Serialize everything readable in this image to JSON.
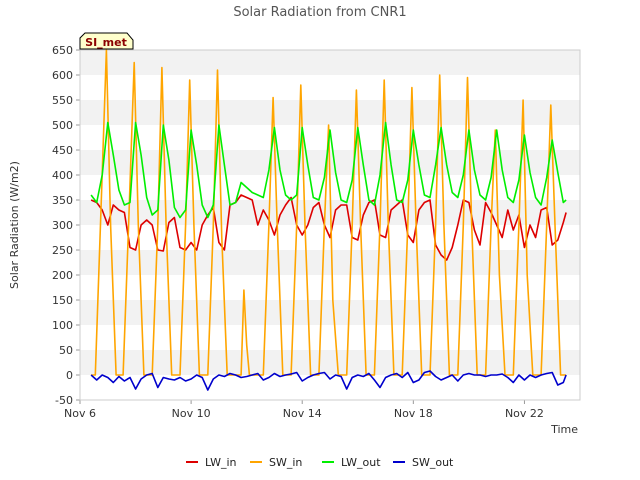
{
  "chart_data": {
    "type": "line",
    "title": "Solar Radiation from CNR1",
    "xlabel": "Time",
    "ylabel": "Solar Radiation (W/m2)",
    "station_badge": "SI_met",
    "ylim": [
      -50,
      650
    ],
    "y_ticks": [
      -50,
      0,
      50,
      100,
      150,
      200,
      250,
      300,
      350,
      400,
      450,
      500,
      550,
      600,
      650
    ],
    "xlim": [
      6.0,
      24.0
    ],
    "x_ticks": [
      {
        "value": 6,
        "label": "Nov 6"
      },
      {
        "value": 10,
        "label": "Nov 10"
      },
      {
        "value": 14,
        "label": "Nov 14"
      },
      {
        "value": 18,
        "label": "Nov 18"
      },
      {
        "value": 22,
        "label": "Nov 22"
      }
    ],
    "grid": "horizontal bands",
    "legend_position": "bottom",
    "series": [
      {
        "name": "LW_in",
        "color": "#dd0000",
        "x": [
          6.4,
          6.6,
          6.8,
          7.0,
          7.2,
          7.4,
          7.6,
          7.8,
          8.0,
          8.2,
          8.4,
          8.6,
          8.8,
          9.0,
          9.2,
          9.4,
          9.6,
          9.8,
          10.0,
          10.2,
          10.4,
          10.6,
          10.8,
          11.0,
          11.2,
          11.4,
          11.6,
          11.8,
          12.0,
          12.2,
          12.4,
          12.6,
          12.8,
          13.0,
          13.2,
          13.4,
          13.6,
          13.8,
          14.0,
          14.2,
          14.4,
          14.6,
          14.8,
          15.0,
          15.2,
          15.4,
          15.6,
          15.8,
          16.0,
          16.2,
          16.4,
          16.6,
          16.8,
          17.0,
          17.2,
          17.4,
          17.6,
          17.8,
          18.0,
          18.2,
          18.4,
          18.6,
          18.8,
          19.0,
          19.2,
          19.4,
          19.6,
          19.8,
          20.0,
          20.2,
          20.4,
          20.6,
          20.8,
          21.0,
          21.2,
          21.4,
          21.6,
          21.8,
          22.0,
          22.2,
          22.4,
          22.6,
          22.8,
          23.0,
          23.2,
          23.4,
          23.5
        ],
        "values": [
          350,
          345,
          330,
          300,
          340,
          330,
          325,
          255,
          250,
          300,
          310,
          300,
          250,
          248,
          305,
          315,
          255,
          250,
          265,
          250,
          300,
          320,
          335,
          265,
          250,
          340,
          345,
          360,
          355,
          350,
          300,
          330,
          310,
          280,
          320,
          340,
          355,
          300,
          280,
          300,
          335,
          345,
          300,
          275,
          330,
          340,
          340,
          275,
          270,
          320,
          345,
          350,
          280,
          275,
          330,
          340,
          350,
          280,
          265,
          330,
          345,
          350,
          260,
          240,
          230,
          255,
          300,
          350,
          345,
          290,
          260,
          345,
          325,
          300,
          275,
          330,
          290,
          320,
          255,
          300,
          275,
          330,
          335,
          260,
          270,
          305,
          325
        ]
      },
      {
        "name": "SW_in",
        "color": "#ffa500",
        "x": [
          6.4,
          6.55,
          6.75,
          6.95,
          7.1,
          7.3,
          7.55,
          7.75,
          7.95,
          8.1,
          8.3,
          8.6,
          8.8,
          8.95,
          9.1,
          9.3,
          9.6,
          9.8,
          9.95,
          10.1,
          10.3,
          10.6,
          10.8,
          10.95,
          11.1,
          11.3,
          11.6,
          11.8,
          11.9,
          12.0,
          12.1,
          12.3,
          12.6,
          12.8,
          12.95,
          13.1,
          13.3,
          13.6,
          13.8,
          13.95,
          14.1,
          14.3,
          14.6,
          14.8,
          14.95,
          15.1,
          15.3,
          15.6,
          15.8,
          15.95,
          16.1,
          16.3,
          16.6,
          16.8,
          16.95,
          17.1,
          17.3,
          17.6,
          17.8,
          17.95,
          18.1,
          18.3,
          18.6,
          18.8,
          18.95,
          19.1,
          19.3,
          19.6,
          19.8,
          19.95,
          20.1,
          20.3,
          20.6,
          20.8,
          20.95,
          21.1,
          21.3,
          21.6,
          21.8,
          21.95,
          22.1,
          22.3,
          22.6,
          22.8,
          22.95,
          23.1,
          23.3,
          23.5
        ],
        "values": [
          0,
          0,
          320,
          650,
          300,
          0,
          0,
          300,
          625,
          300,
          0,
          0,
          300,
          615,
          300,
          0,
          0,
          300,
          590,
          300,
          0,
          0,
          300,
          610,
          280,
          0,
          0,
          0,
          170,
          60,
          0,
          0,
          0,
          300,
          555,
          300,
          0,
          0,
          300,
          580,
          300,
          0,
          0,
          300,
          500,
          150,
          0,
          0,
          300,
          570,
          300,
          0,
          0,
          300,
          590,
          300,
          0,
          0,
          300,
          575,
          300,
          0,
          0,
          300,
          600,
          300,
          0,
          0,
          300,
          595,
          300,
          0,
          0,
          300,
          490,
          200,
          0,
          0,
          300,
          550,
          200,
          0,
          0,
          300,
          540,
          300,
          0,
          0
        ]
      },
      {
        "name": "LW_out",
        "color": "#00ee00",
        "x": [
          6.4,
          6.6,
          6.8,
          7.0,
          7.2,
          7.4,
          7.6,
          7.8,
          8.0,
          8.2,
          8.4,
          8.6,
          8.8,
          9.0,
          9.2,
          9.4,
          9.6,
          9.8,
          10.0,
          10.2,
          10.4,
          10.6,
          10.8,
          11.0,
          11.2,
          11.4,
          11.6,
          11.8,
          12.0,
          12.2,
          12.4,
          12.6,
          12.8,
          13.0,
          13.2,
          13.4,
          13.6,
          13.8,
          14.0,
          14.2,
          14.4,
          14.6,
          14.8,
          15.0,
          15.2,
          15.4,
          15.6,
          15.8,
          16.0,
          16.2,
          16.4,
          16.6,
          16.8,
          17.0,
          17.2,
          17.4,
          17.6,
          17.8,
          18.0,
          18.2,
          18.4,
          18.6,
          18.8,
          19.0,
          19.2,
          19.4,
          19.6,
          19.8,
          20.0,
          20.2,
          20.4,
          20.6,
          20.8,
          21.0,
          21.2,
          21.4,
          21.6,
          21.8,
          22.0,
          22.2,
          22.4,
          22.6,
          22.8,
          23.0,
          23.2,
          23.4,
          23.5
        ],
        "values": [
          360,
          345,
          400,
          505,
          440,
          370,
          340,
          345,
          505,
          440,
          355,
          320,
          330,
          500,
          430,
          335,
          315,
          330,
          490,
          420,
          340,
          315,
          340,
          500,
          420,
          340,
          345,
          385,
          375,
          365,
          360,
          355,
          410,
          495,
          410,
          360,
          350,
          360,
          495,
          420,
          355,
          350,
          395,
          490,
          405,
          350,
          345,
          390,
          495,
          420,
          350,
          340,
          400,
          505,
          420,
          350,
          345,
          390,
          490,
          420,
          360,
          355,
          420,
          495,
          420,
          365,
          355,
          400,
          490,
          410,
          360,
          350,
          395,
          490,
          410,
          355,
          345,
          390,
          480,
          405,
          355,
          340,
          395,
          470,
          405,
          345,
          350
        ]
      },
      {
        "name": "SW_out",
        "color": "#0000cc",
        "x": [
          6.4,
          6.6,
          6.8,
          7.0,
          7.2,
          7.4,
          7.6,
          7.8,
          8.0,
          8.2,
          8.4,
          8.6,
          8.8,
          9.0,
          9.2,
          9.4,
          9.6,
          9.8,
          10.0,
          10.2,
          10.4,
          10.6,
          10.8,
          11.0,
          11.2,
          11.4,
          11.6,
          11.8,
          12.0,
          12.2,
          12.4,
          12.6,
          12.8,
          13.0,
          13.2,
          13.4,
          13.6,
          13.8,
          14.0,
          14.2,
          14.4,
          14.6,
          14.8,
          15.0,
          15.2,
          15.4,
          15.6,
          15.8,
          16.0,
          16.2,
          16.4,
          16.6,
          16.8,
          17.0,
          17.2,
          17.4,
          17.6,
          17.8,
          18.0,
          18.2,
          18.4,
          18.6,
          18.8,
          19.0,
          19.2,
          19.4,
          19.6,
          19.8,
          20.0,
          20.2,
          20.4,
          20.6,
          20.8,
          21.0,
          21.2,
          21.4,
          21.6,
          21.8,
          22.0,
          22.2,
          22.4,
          22.6,
          22.8,
          23.0,
          23.2,
          23.4,
          23.5
        ],
        "values": [
          0,
          -10,
          0,
          -5,
          -15,
          -3,
          -12,
          -5,
          -28,
          -8,
          0,
          3,
          -25,
          -5,
          -8,
          -10,
          -5,
          -12,
          -8,
          0,
          -5,
          -30,
          -8,
          0,
          -3,
          3,
          0,
          -5,
          -3,
          0,
          3,
          -10,
          -5,
          3,
          -3,
          0,
          2,
          5,
          -12,
          -5,
          0,
          3,
          5,
          -8,
          0,
          -3,
          -28,
          -5,
          0,
          -3,
          3,
          -10,
          -25,
          -5,
          0,
          3,
          -5,
          5,
          -15,
          -10,
          5,
          8,
          -3,
          -10,
          -5,
          0,
          -12,
          0,
          3,
          0,
          0,
          -3,
          0,
          0,
          2,
          -5,
          -15,
          0,
          -10,
          0,
          -5,
          0,
          3,
          5,
          -20,
          -15,
          0
        ]
      }
    ]
  }
}
